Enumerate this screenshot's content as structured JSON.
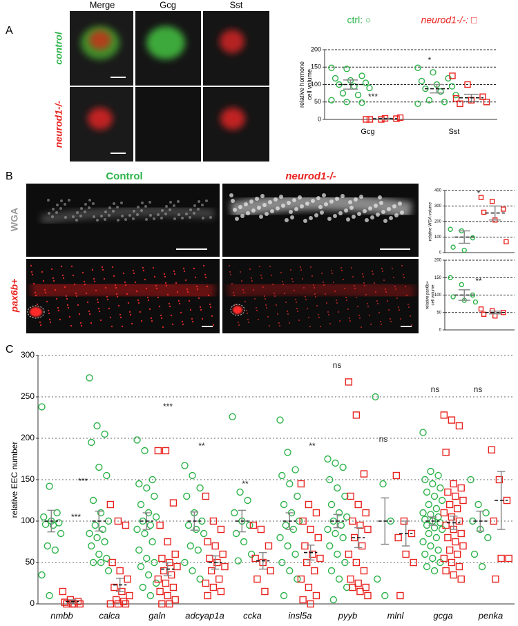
{
  "figure": {
    "panel_labels": [
      "A",
      "B",
      "C"
    ],
    "a_columns": [
      "Merge",
      "Gcg",
      "Sst"
    ],
    "a_rows": [
      "control",
      "neurod1-/-"
    ],
    "b_columns": [
      "Control",
      "neurod1-/-"
    ],
    "b_rows": [
      "WGA",
      "pax6b+"
    ]
  },
  "chart_data": [
    {
      "type": "scatter",
      "legend": true,
      "grid": true,
      "categories": [
        "Gcg",
        "Sst"
      ],
      "ylabel": [
        "relative hormone",
        "cell volume"
      ],
      "ylim": [
        0,
        200
      ],
      "yticks": [
        0,
        50,
        100,
        150,
        200
      ],
      "annotations": [
        "***",
        "*"
      ],
      "series": [
        {
          "name": "ctrl: ○",
          "color": "#2db34a",
          "marker": "circle",
          "values": [
            100,
            88
          ],
          "sem": [
            13,
            12
          ],
          "points": [
            [
              148,
              145,
              125,
              118,
              112,
              105,
              100,
              95,
              90,
              75,
              70,
              55,
              50,
              48
            ],
            [
              148,
              135,
              118,
              110,
              100,
              95,
              88,
              80,
              70,
              55,
              50,
              45
            ]
          ]
        },
        {
          "name": "neurod1-/-: □",
          "color": "#e8231f",
          "marker": "square",
          "values": [
            2,
            62
          ],
          "sem": [
            1,
            10
          ],
          "points": [
            [
              0,
              0,
              2,
              0,
              3,
              5
            ],
            [
              125,
              100,
              65,
              60,
              55,
              50,
              45
            ]
          ]
        }
      ]
    },
    {
      "type": "scatter",
      "grid": true,
      "ylabel": [
        "relative WGA volume"
      ],
      "ylim": [
        0,
        400
      ],
      "yticks": [
        0,
        100,
        200,
        300,
        400
      ],
      "annotations": [
        "*"
      ],
      "series": [
        {
          "color": "#2db34a",
          "marker": "circle",
          "values": [
            100
          ],
          "sem": [
            40
          ],
          "points": [
            [
              150,
              140,
              95,
              35,
              15
            ]
          ]
        },
        {
          "color": "#e8231f",
          "marker": "square",
          "values": [
            255
          ],
          "sem": [
            45
          ],
          "points": [
            [
              355,
              330,
              280,
              260,
              210,
              70
            ]
          ]
        }
      ]
    },
    {
      "type": "scatter",
      "grid": true,
      "ylabel": [
        "relative pax6b+",
        "cell volume"
      ],
      "ylim": [
        0,
        200
      ],
      "yticks": [
        0,
        50,
        100,
        150,
        200
      ],
      "annotations": [
        "**"
      ],
      "series": [
        {
          "color": "#2db34a",
          "marker": "circle",
          "values": [
            100
          ],
          "sem": [
            15
          ],
          "points": [
            [
              150,
              130,
              100,
              95,
              85,
              80
            ]
          ]
        },
        {
          "color": "#e8231f",
          "marker": "square",
          "values": [
            50
          ],
          "sem": [
            4
          ],
          "points": [
            [
              60,
              55,
              50,
              45,
              40
            ]
          ]
        }
      ]
    },
    {
      "type": "scatter",
      "grid": true,
      "categories": [
        "nmbb",
        "calca",
        "galn",
        "adcyap1a",
        "ccka",
        "insl5a",
        "pyyb",
        "mlnl",
        "gcga",
        "penka"
      ],
      "ylabel": [
        "relative EEC number"
      ],
      "ylim": [
        0,
        300
      ],
      "yticks": [
        0,
        50,
        100,
        150,
        200,
        250,
        300
      ],
      "annotations": [
        "***",
        "***",
        "***",
        "**",
        "**",
        "**",
        "ns",
        "ns",
        "ns",
        "ns"
      ],
      "series": [
        {
          "color": "#2db34a",
          "marker": "circle",
          "values": [
            100,
            100,
            100,
            100,
            100,
            100,
            100,
            100,
            100,
            100
          ],
          "sem": [
            13,
            12,
            10,
            11,
            13,
            10,
            8,
            28,
            5,
            12
          ],
          "points": [
            [
              238,
              142,
              110,
              105,
              100,
              98,
              96,
              95,
              85,
              70,
              65,
              35,
              10
            ],
            [
              273,
              215,
              205,
              195,
              165,
              155,
              125,
              110,
              100,
              95,
              90,
              85,
              80,
              75,
              70,
              60,
              55,
              50,
              50,
              40
            ],
            [
              198,
              185,
              150,
              145,
              140,
              130,
              120,
              110,
              105,
              100,
              95,
              90,
              85,
              75,
              65,
              55,
              50,
              45,
              35,
              25,
              20,
              10
            ],
            [
              167,
              155,
              140,
              130,
              110,
              100,
              95,
              90,
              85,
              70,
              65,
              50,
              40,
              30
            ],
            [
              226,
              135,
              125,
              110,
              100,
              95,
              85,
              75,
              60,
              52
            ],
            [
              222,
              183,
              162,
              155,
              145,
              130,
              120,
              110,
              100,
              95,
              90,
              80,
              70,
              60,
              50,
              40,
              30,
              10
            ],
            [
              175,
              170,
              165,
              150,
              140,
              130,
              120,
              110,
              105,
              100,
              95,
              90,
              85,
              80,
              70,
              60,
              50,
              40,
              30,
              20,
              5
            ],
            [
              250,
              145,
              100,
              30,
              10
            ],
            [
              207,
              160,
              155,
              150,
              145,
              140,
              135,
              130,
              125,
              120,
              115,
              110,
              108,
              105,
              102,
              100,
              98,
              95,
              92,
              90,
              85,
              80,
              75,
              70,
              65,
              60,
              55,
              50,
              45,
              40
            ],
            [
              150,
              120,
              110,
              100,
              90,
              80,
              60,
              45
            ]
          ]
        },
        {
          "color": "#e8231f",
          "marker": "square",
          "values": [
            3,
            23,
            42,
            50,
            52,
            62,
            80,
            85,
            98,
            125
          ],
          "sem": [
            2,
            8,
            8,
            8,
            10,
            9,
            12,
            15,
            8,
            35
          ],
          "points": [
            [
              15,
              5,
              3,
              2,
              0,
              0,
              0,
              0
            ],
            [
              120,
              100,
              95,
              50,
              40,
              30,
              20,
              15,
              10,
              5,
              3,
              0,
              0,
              0
            ],
            [
              185,
              185,
              122,
              95,
              75,
              60,
              55,
              50,
              45,
              40,
              35,
              30,
              25,
              20,
              15,
              10,
              5,
              0,
              0
            ],
            [
              130,
              100,
              90,
              75,
              70,
              60,
              55,
              50,
              45,
              40,
              30,
              25,
              20,
              15,
              10
            ],
            [
              95,
              90,
              70,
              55,
              50,
              40,
              30,
              15
            ],
            [
              145,
              120,
              110,
              100,
              90,
              80,
              70,
              60,
              55,
              50,
              40,
              30,
              20,
              10,
              5,
              0
            ],
            [
              268,
              228,
              157,
              130,
              120,
              110,
              100,
              95,
              90,
              80,
              70,
              60,
              50,
              40,
              30,
              25,
              20,
              20,
              15,
              10
            ],
            [
              155,
              100,
              85,
              80,
              60,
              50,
              10
            ],
            [
              228,
              222,
              215,
              183,
              145,
              140,
              135,
              130,
              125,
              120,
              115,
              110,
              105,
              100,
              95,
              90,
              85,
              80,
              75,
              70,
              65,
              60,
              55,
              50,
              45,
              40,
              35,
              30
            ],
            [
              186,
              150,
              125,
              100,
              55,
              55,
              30
            ]
          ]
        }
      ]
    }
  ]
}
